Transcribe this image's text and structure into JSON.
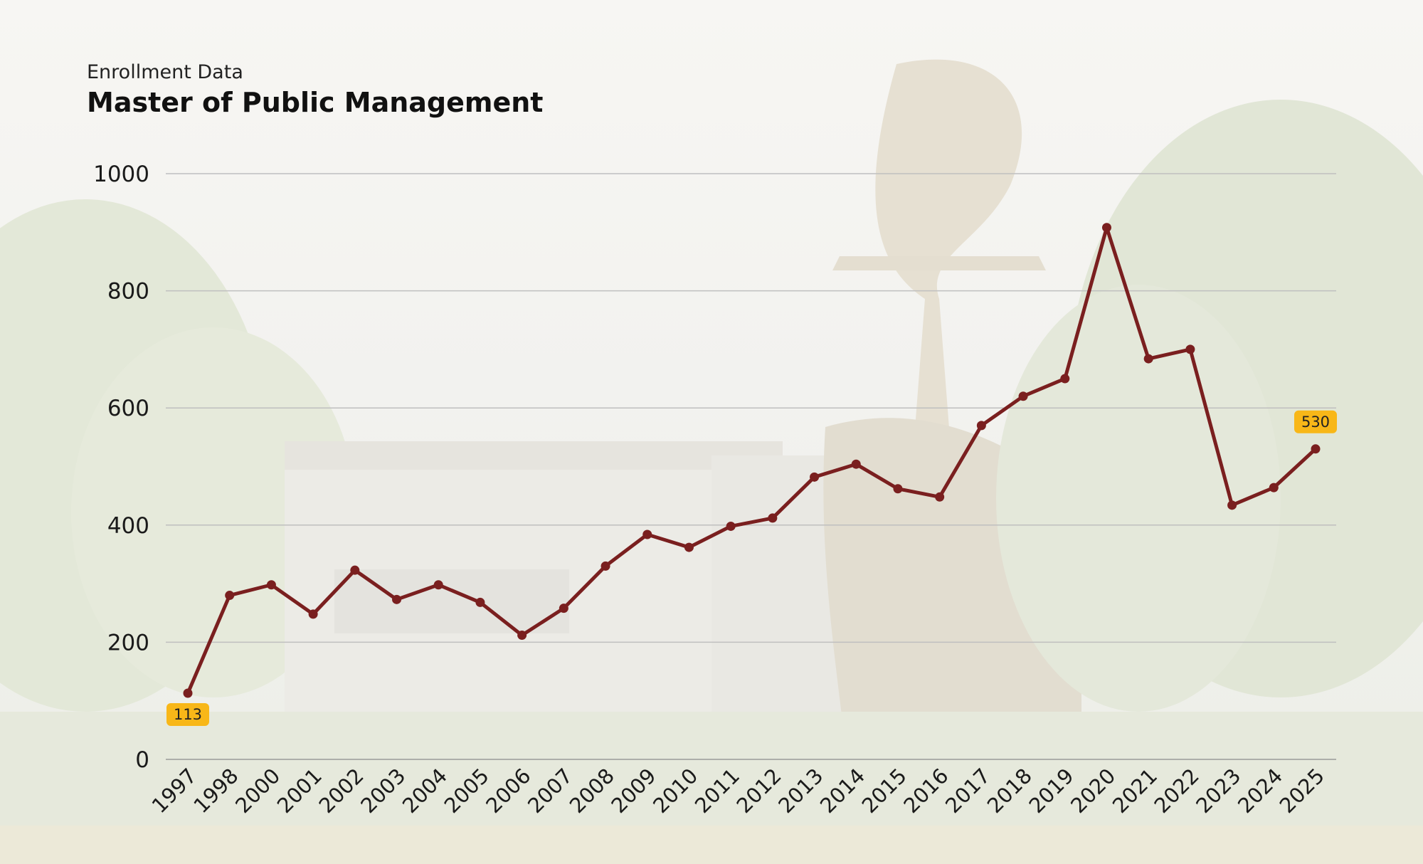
{
  "header": {
    "subtitle": "Enrollment Data",
    "title": "Master of Public Management"
  },
  "colors": {
    "line": "#7a1f1f",
    "label_badge": "#f8b718",
    "grid": "#bfbfbf"
  },
  "chart_data": {
    "type": "line",
    "title": "Master of Public Management",
    "subtitle": "Enrollment Data",
    "xlabel": "",
    "ylabel": "",
    "ylim": [
      0,
      1000
    ],
    "yticks": [
      0,
      200,
      400,
      600,
      800,
      1000
    ],
    "grid": true,
    "legend": "none",
    "categories": [
      "1997",
      "1998",
      "2000",
      "2001",
      "2002",
      "2003",
      "2004",
      "2005",
      "2006",
      "2007",
      "2008",
      "2009",
      "2010",
      "2011",
      "2012",
      "2013",
      "2014",
      "2015",
      "2016",
      "2017",
      "2018",
      "2019",
      "2020",
      "2021",
      "2022",
      "2023",
      "2024",
      "2025"
    ],
    "series": [
      {
        "values": [
          113,
          280,
          298,
          248,
          323,
          273,
          298,
          268,
          212,
          258,
          330,
          384,
          362,
          398,
          412,
          482,
          504,
          462,
          448,
          570,
          620,
          650,
          908,
          684,
          700,
          434,
          464,
          530
        ]
      }
    ],
    "annotations": [
      {
        "category": "1997",
        "text": "113"
      },
      {
        "category": "2025",
        "text": "530"
      }
    ]
  }
}
